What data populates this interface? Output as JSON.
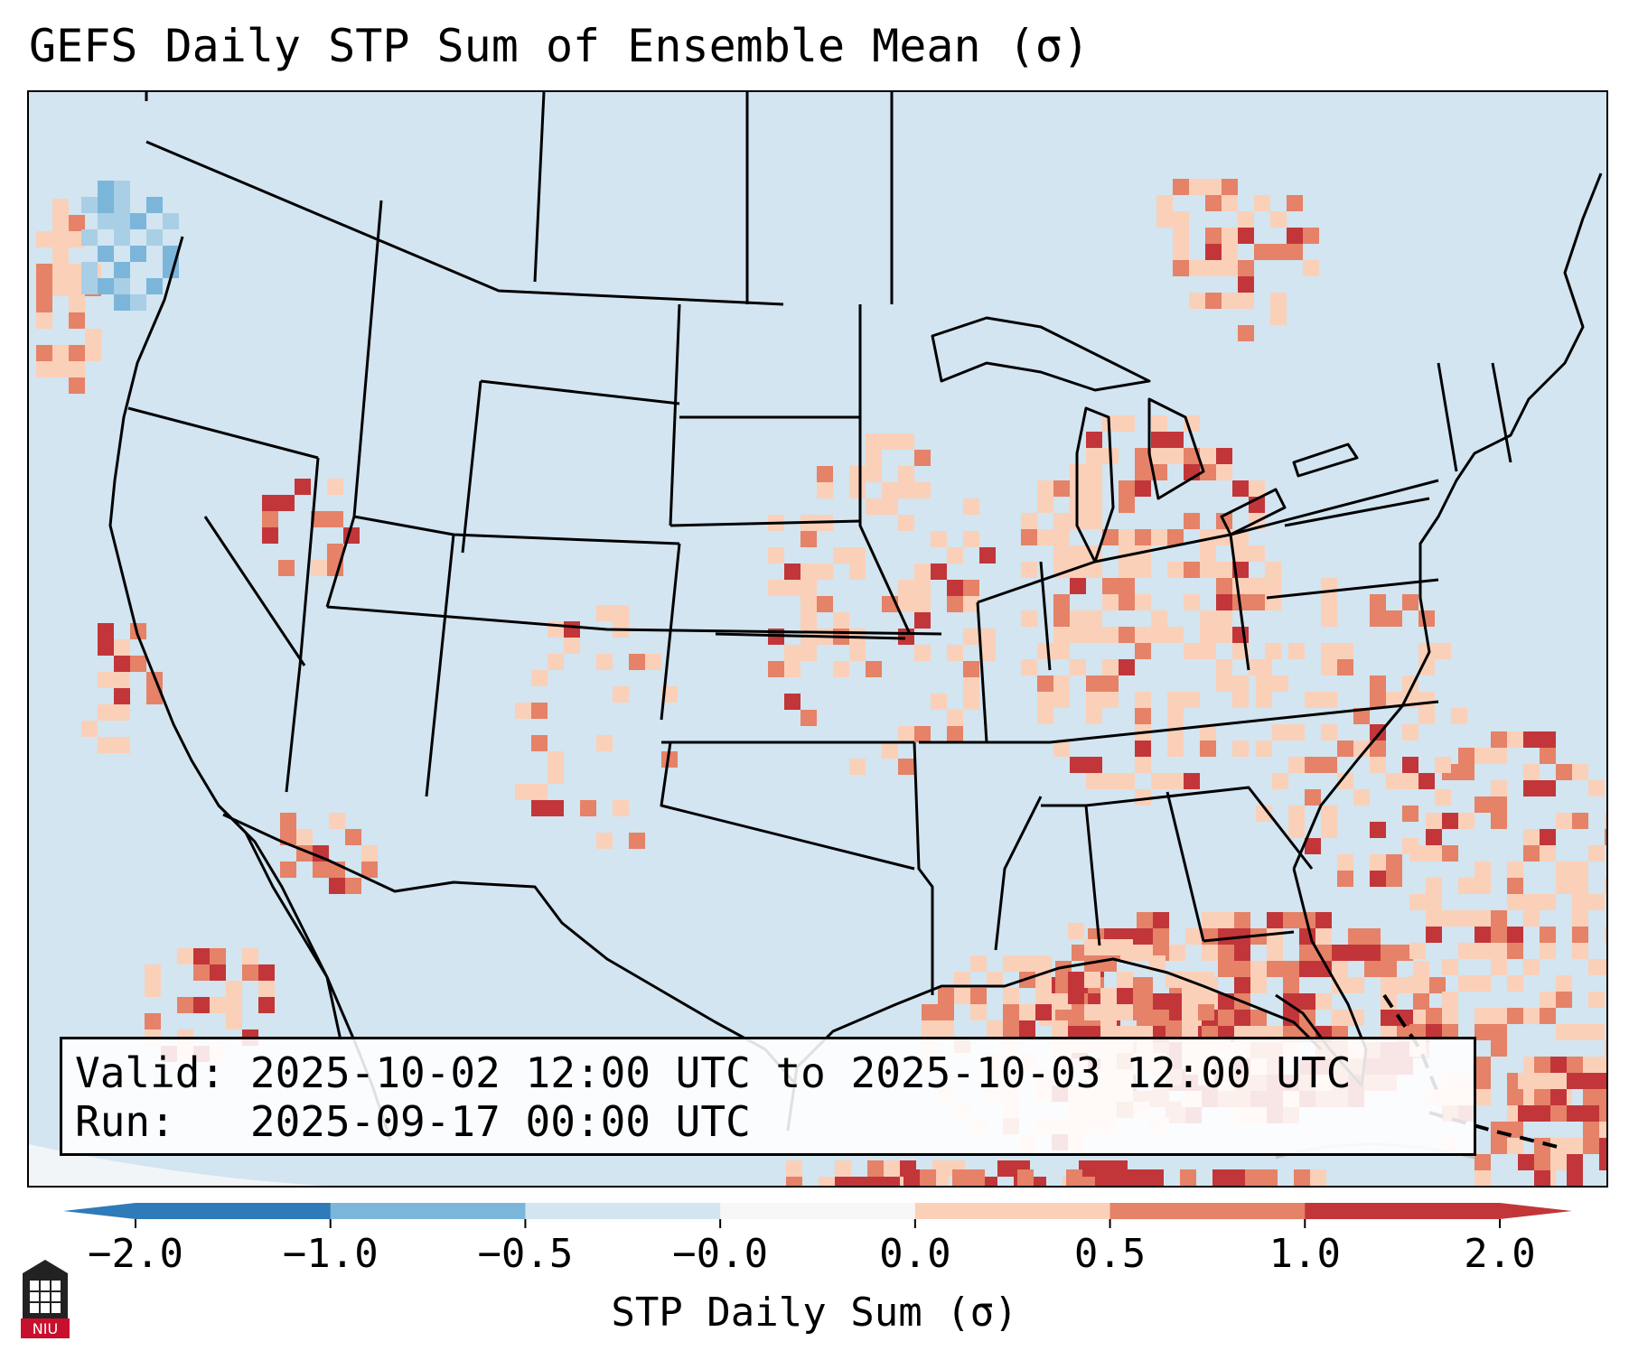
{
  "title": "GEFS Daily STP Sum of Ensemble Mean (σ)",
  "valid_label": "Valid:",
  "valid_value": "2025-10-02 12:00 UTC to 2025-10-03 12:00 UTC",
  "run_label": "Run:",
  "run_value": "2025-09-17 00:00 UTC",
  "colorbar": {
    "label": "STP Daily Sum (σ)",
    "ticks": [
      "−2.0",
      "−1.0",
      "−0.5",
      "−0.0",
      "0.0",
      "0.5",
      "1.0",
      "2.0"
    ],
    "colors": [
      "#2f7ab9",
      "#7bb6da",
      "#d2e5f0",
      "#f7f7f7",
      "#fbd0b9",
      "#e58267",
      "#c23639"
    ],
    "under_color": "#2f7ab9",
    "over_color": "#c23639"
  },
  "logo_text": "NIU",
  "colors": {
    "ocean_background": "#d2e5f0",
    "boundary": "#000000"
  }
}
